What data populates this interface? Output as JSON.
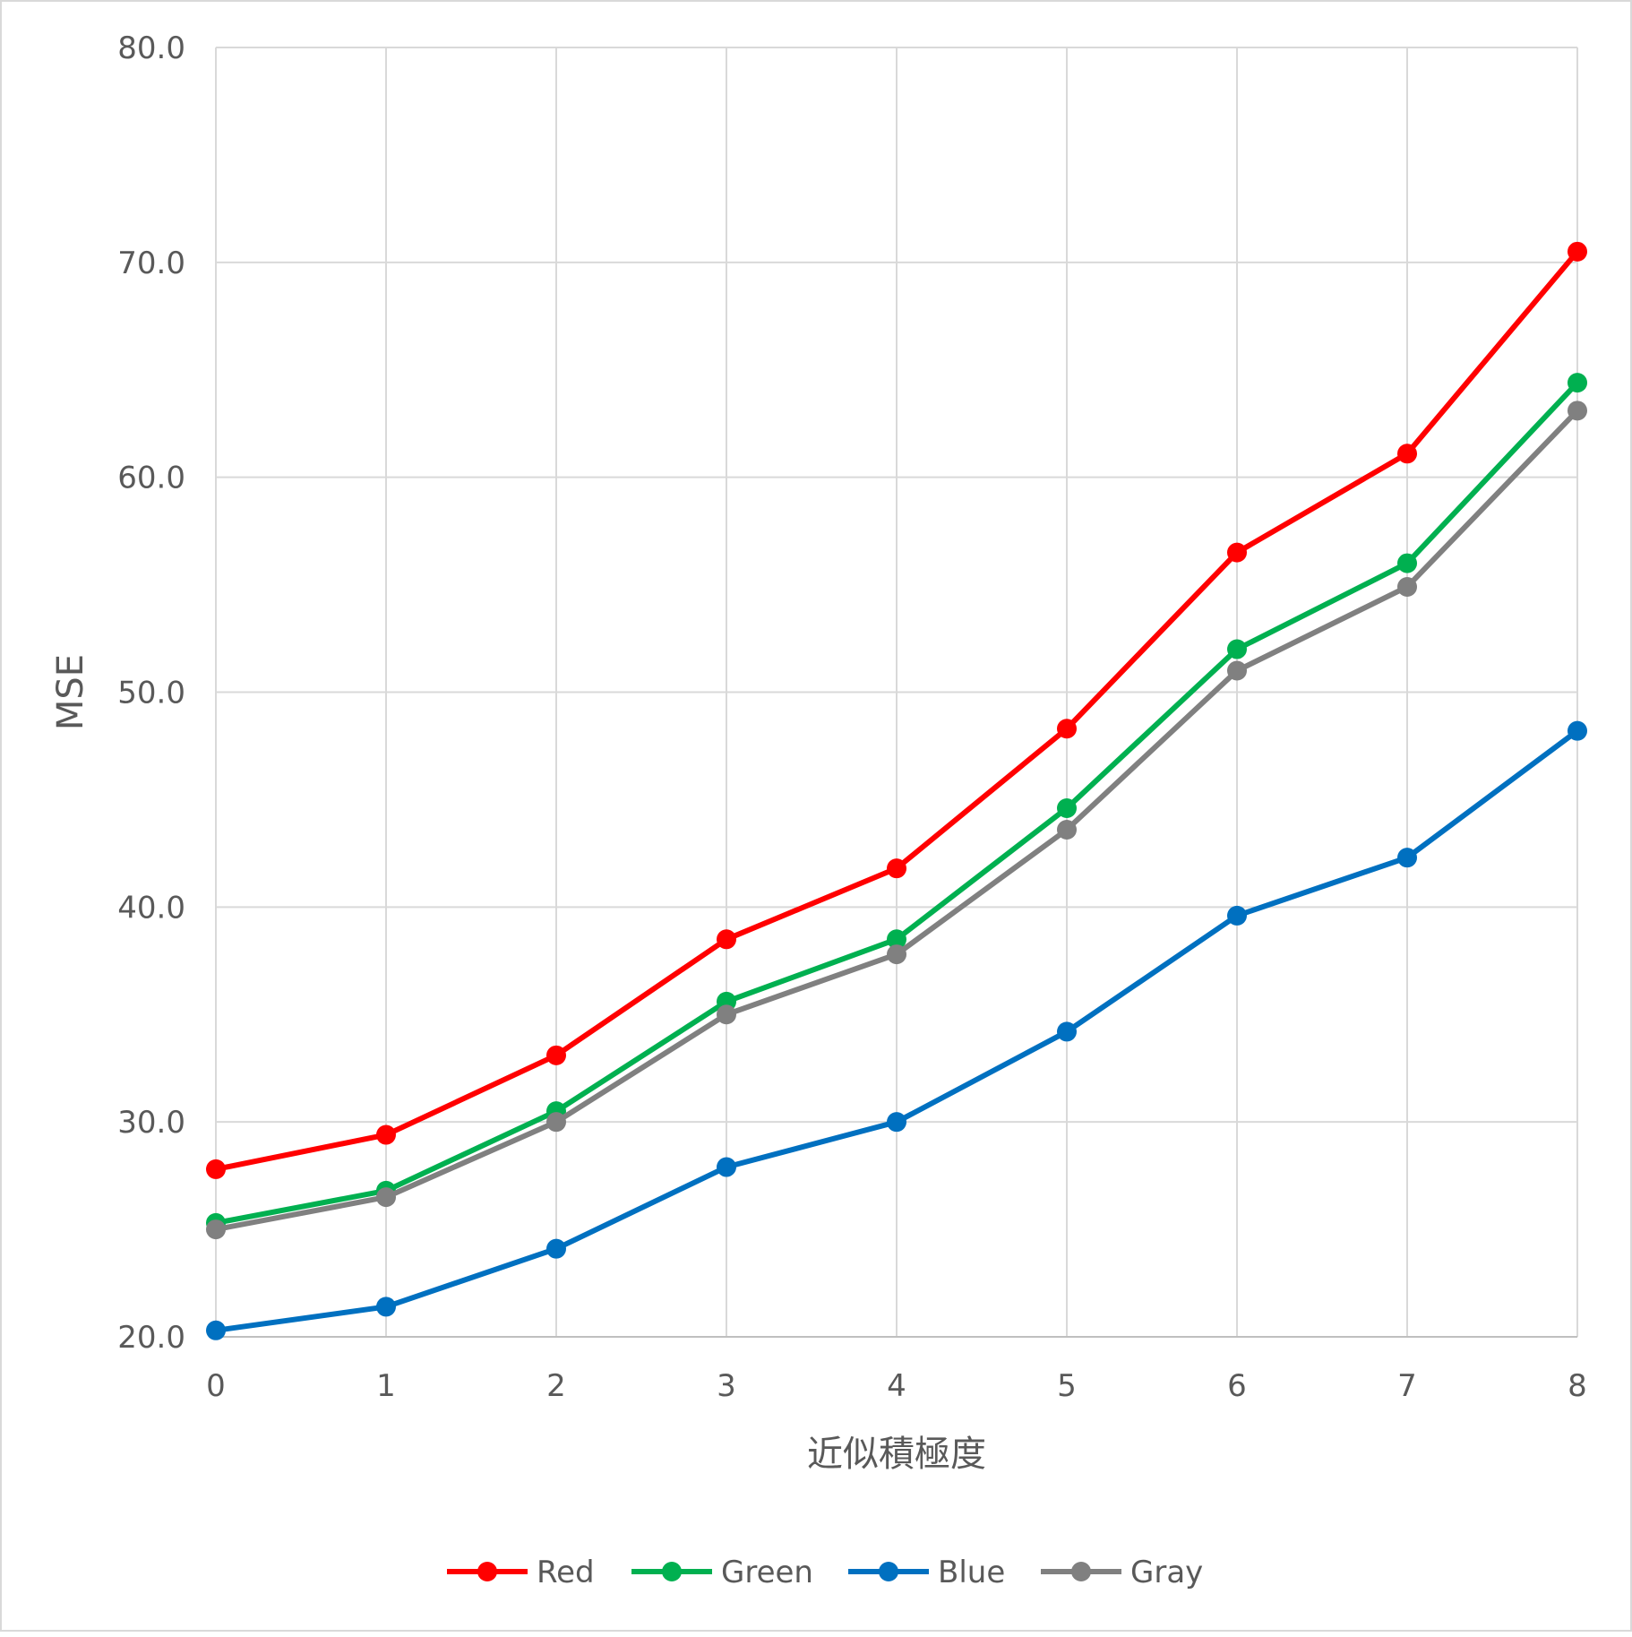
{
  "chart_data": {
    "type": "line",
    "title": "",
    "xlabel": "近似積極度",
    "ylabel": "MSE",
    "x": [
      0,
      1,
      2,
      3,
      4,
      5,
      6,
      7,
      8
    ],
    "x_tick_labels": [
      "0",
      "1",
      "2",
      "3",
      "4",
      "5",
      "6",
      "7",
      "8"
    ],
    "xlim": [
      0,
      8
    ],
    "ylim": [
      20,
      80
    ],
    "y_ticks": [
      20,
      30,
      40,
      50,
      60,
      70,
      80
    ],
    "y_tick_labels": [
      "20.0",
      "30.0",
      "40.0",
      "50.0",
      "60.0",
      "70.0",
      "80.0"
    ],
    "grid": true,
    "legend_position": "bottom",
    "series": [
      {
        "name": "Red",
        "color": "#ff0000",
        "values": [
          27.8,
          29.4,
          33.1,
          38.5,
          41.8,
          48.3,
          56.5,
          61.1,
          70.5
        ]
      },
      {
        "name": "Green",
        "color": "#00b050",
        "values": [
          25.3,
          26.8,
          30.5,
          35.6,
          38.5,
          44.6,
          52.0,
          56.0,
          64.4
        ]
      },
      {
        "name": "Blue",
        "color": "#0070c0",
        "values": [
          20.3,
          21.4,
          24.1,
          27.9,
          30.0,
          34.2,
          39.6,
          42.3,
          48.2
        ]
      },
      {
        "name": "Gray",
        "color": "#808080",
        "values": [
          25.0,
          26.5,
          30.0,
          35.0,
          37.8,
          43.6,
          51.0,
          54.9,
          63.1
        ]
      }
    ]
  }
}
